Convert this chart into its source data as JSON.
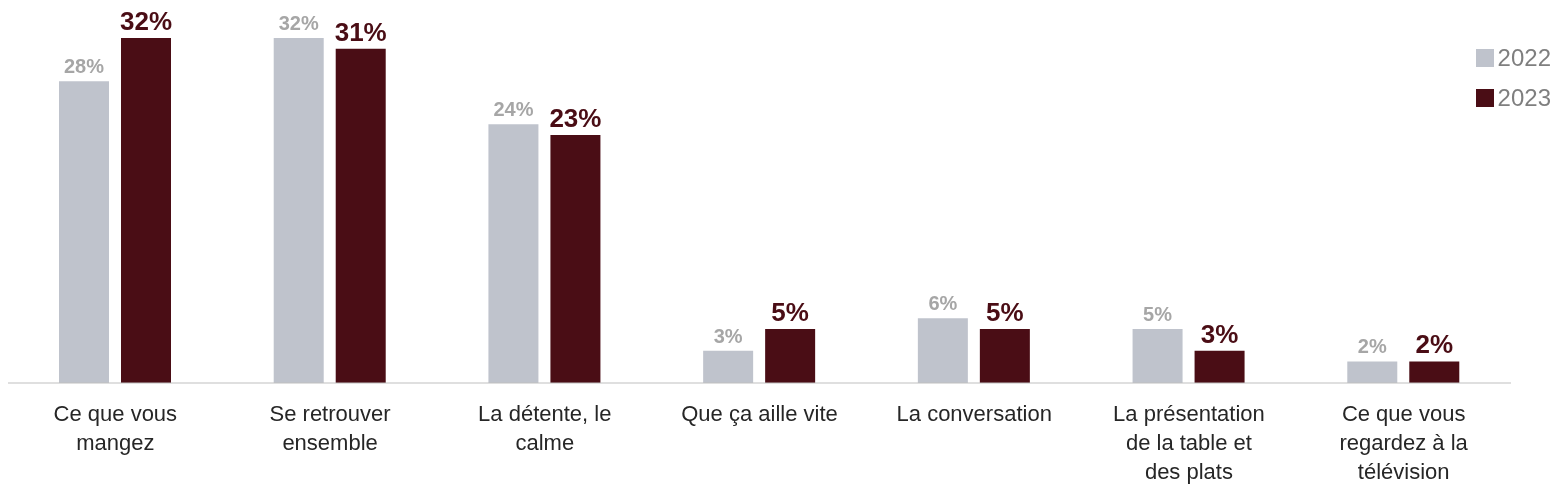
{
  "chart_data": {
    "type": "bar",
    "categories": [
      "Ce que vous mangez",
      "Se retrouver ensemble",
      "La détente, le calme",
      "Que ça aille vite",
      "La conversation",
      "La présentation de la table et des plats",
      "Ce que vous regardez à la télévision"
    ],
    "series": [
      {
        "name": "2022",
        "color": "#bfc3cc",
        "values": [
          28,
          32,
          24,
          3,
          6,
          5,
          2
        ],
        "value_labels": [
          "28%",
          "32%",
          "24%",
          "3%",
          "6%",
          "5%",
          "2%"
        ]
      },
      {
        "name": "2023",
        "color": "#4a0d15",
        "values": [
          32,
          31,
          23,
          5,
          5,
          3,
          2
        ],
        "value_labels": [
          "32%",
          "31%",
          "23%",
          "5%",
          "5%",
          "3%",
          "2%"
        ]
      }
    ],
    "legend": "top right",
    "grid": false
  }
}
